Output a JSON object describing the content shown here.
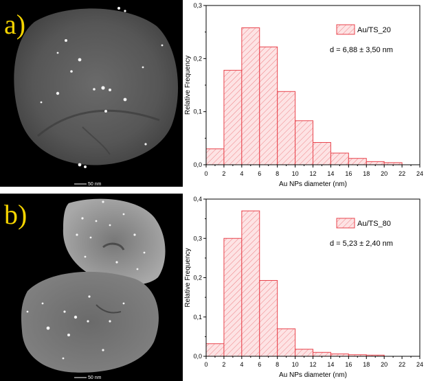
{
  "panels": [
    {
      "letter": "a)",
      "scale_bar": "50 nm",
      "chart_data": {
        "type": "bar",
        "bin_edges": [
          0,
          2,
          4,
          6,
          8,
          10,
          12,
          14,
          16,
          18,
          20,
          22
        ],
        "values": [
          0.03,
          0.178,
          0.258,
          0.222,
          0.138,
          0.083,
          0.042,
          0.022,
          0.012,
          0.006,
          0.004
        ],
        "xlabel": "Au NPs diameter (nm)",
        "ylabel": "Relative Frequency",
        "xlim": [
          0,
          24
        ],
        "ylim": [
          0,
          0.3
        ],
        "xticks": [
          "0",
          "2",
          "4",
          "6",
          "8",
          "10",
          "12",
          "14",
          "16",
          "18",
          "20",
          "22",
          "24"
        ],
        "yticks": [
          "0,0",
          "0,1",
          "0,2",
          "0,3"
        ],
        "legend": "Au/TS_20",
        "legend_position": "top-right",
        "annotation": "d = 6,88 ± 3,50 nm",
        "bar_color": "#e8434c",
        "bar_fill": "#fde3e4"
      }
    },
    {
      "letter": "b)",
      "scale_bar": "50 nm",
      "chart_data": {
        "type": "bar",
        "bin_edges": [
          0,
          2,
          4,
          6,
          8,
          10,
          12,
          14,
          16,
          18,
          20
        ],
        "values": [
          0.032,
          0.3,
          0.37,
          0.193,
          0.07,
          0.018,
          0.01,
          0.006,
          0.004,
          0.003
        ],
        "xlabel": "Au NPs diameter (nm)",
        "ylabel": "Relative Frequency",
        "xlim": [
          0,
          24
        ],
        "ylim": [
          0,
          0.4
        ],
        "xticks": [
          "0",
          "2",
          "4",
          "6",
          "8",
          "10",
          "12",
          "14",
          "16",
          "18",
          "20",
          "22",
          "24"
        ],
        "yticks": [
          "0,0",
          "0,1",
          "0,2",
          "0,3",
          "0,4"
        ],
        "legend": "Au/TS_80",
        "legend_position": "top-right",
        "annotation": "d = 5,23 ± 2,40 nm",
        "bar_color": "#e8434c",
        "bar_fill": "#fde3e4"
      }
    }
  ]
}
